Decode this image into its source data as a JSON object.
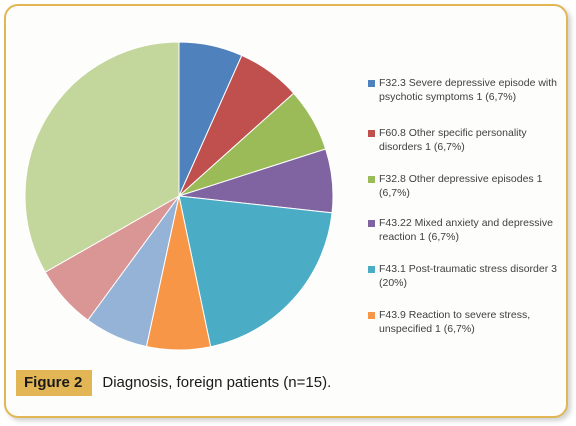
{
  "chart_data": {
    "type": "pie",
    "slices": [
      {
        "label": "F32.3 Severe depressive episode with psychotic symptoms 1 (6,7%)",
        "value": 6.7,
        "color": "#4f81bd"
      },
      {
        "label": "F60.8 Other specific personality disorders  1 (6,7%)",
        "value": 6.7,
        "color": "#c0504d"
      },
      {
        "label": "F32.8 Other depressive episodes 1 (6,7%)",
        "value": 6.7,
        "color": "#9bbb59"
      },
      {
        "label": "F43.22 Mixed anxiety and depressive reaction  1 (6,7%)",
        "value": 6.7,
        "color": "#8064a2"
      },
      {
        "label": "F43.1 Post-traumatic stress disorder  3 (20%)",
        "value": 20,
        "color": "#4bacc6"
      },
      {
        "label": "F43.9 Reaction to severe stress, unspecified  1 (6,7%)",
        "value": 6.7,
        "color": "#f79646"
      },
      {
        "label": "",
        "value": 6.7,
        "color": "#95b3d7"
      },
      {
        "label": "",
        "value": 6.7,
        "color": "#d99694"
      },
      {
        "label": "",
        "value": 33.3,
        "color": "#c3d69b"
      }
    ],
    "legend_position": "right"
  },
  "caption": {
    "tag": "Figure 2",
    "text": "Diagnosis, foreign patients (n=15)."
  }
}
